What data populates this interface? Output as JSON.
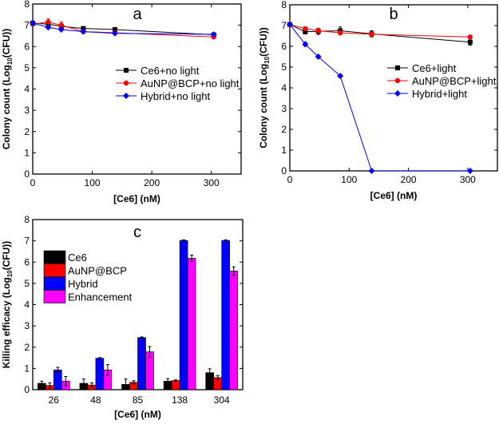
{
  "chart_data": [
    {
      "id": "a",
      "type": "line",
      "panel_label": "a",
      "xlabel": "[Ce6] (nM)",
      "ylabel_pre": "Colony count (Log",
      "ylabel_sub": "10",
      "ylabel_post": "(CFU))",
      "xlim": [
        0,
        350
      ],
      "ylim": [
        0,
        8
      ],
      "xticks": [
        0,
        100,
        200,
        300
      ],
      "yticks": [
        0,
        1,
        2,
        3,
        4,
        5,
        6,
        7,
        8
      ],
      "x": [
        0,
        26,
        48,
        85,
        138,
        304
      ],
      "legend_position": "center-right",
      "series": [
        {
          "name": "Ce6+no light",
          "color": "#000000",
          "marker": "square",
          "values": [
            7.1,
            7.05,
            6.95,
            6.85,
            6.8,
            6.55
          ],
          "errors": [
            0.05,
            0.1,
            0.1,
            0.05,
            0.05,
            0.05
          ]
        },
        {
          "name": "AuNP@BCP+no light",
          "color": "#ff0000",
          "marker": "circle",
          "values": [
            7.05,
            7.15,
            7.0,
            6.7,
            6.65,
            6.45
          ],
          "errors": [
            0.05,
            0.15,
            0.15,
            0.05,
            0.05,
            0.05
          ]
        },
        {
          "name": "Hybrid+no light",
          "color": "#0000ff",
          "marker": "diamond",
          "values": [
            7.1,
            6.9,
            6.8,
            6.7,
            6.62,
            6.57
          ],
          "errors": [
            0.03,
            0.05,
            0.05,
            0.05,
            0.05,
            0.03
          ]
        }
      ]
    },
    {
      "id": "b",
      "type": "line",
      "panel_label": "b",
      "xlabel": "[Ce6] (nM)",
      "ylabel_pre": "Colony count (Log",
      "ylabel_sub": "10",
      "ylabel_post": "(CFU))",
      "xlim": [
        0,
        350
      ],
      "ylim": [
        0,
        8
      ],
      "xticks": [
        0,
        100,
        200,
        300
      ],
      "yticks": [
        0,
        1,
        2,
        3,
        4,
        5,
        6,
        7,
        8
      ],
      "x": [
        0,
        26,
        48,
        85,
        138,
        304
      ],
      "legend_position": "center-right",
      "series": [
        {
          "name": "Ce6+light",
          "color": "#000000",
          "marker": "square",
          "values": [
            7.05,
            6.7,
            6.72,
            6.75,
            6.6,
            6.2
          ],
          "errors": [
            0.05,
            0.1,
            0.15,
            0.18,
            0.15,
            0.15
          ]
        },
        {
          "name": "AuNP@BCP+light",
          "color": "#ff0000",
          "marker": "circle",
          "values": [
            7.05,
            6.85,
            6.75,
            6.65,
            6.58,
            6.45
          ],
          "errors": [
            0.05,
            0.08,
            0.1,
            0.1,
            0.08,
            0.08
          ]
        },
        {
          "name": "Hybrid+light",
          "color": "#0000ff",
          "marker": "diamond",
          "values": [
            7.05,
            6.1,
            5.5,
            4.57,
            0,
            0
          ],
          "errors": [
            0.05,
            0.1,
            0.05,
            0.05,
            0,
            0
          ]
        }
      ]
    },
    {
      "id": "c",
      "type": "bar",
      "panel_label": "c",
      "xlabel": "[Ce6] (nM)",
      "ylabel_pre": "Killing efficacy (Log",
      "ylabel_sub": "10",
      "ylabel_post": "(CFU))",
      "ylim": [
        0,
        8
      ],
      "yticks": [
        0,
        1,
        2,
        3,
        4,
        5,
        6,
        7,
        8
      ],
      "categories": [
        "26",
        "48",
        "85",
        "138",
        "304"
      ],
      "legend_position": "top-left",
      "series": [
        {
          "name": "Ce6",
          "color": "#000000",
          "values": [
            0.3,
            0.3,
            0.25,
            0.4,
            0.8
          ],
          "errors": [
            0.1,
            0.2,
            0.25,
            0.12,
            0.18
          ]
        },
        {
          "name": "AuNP@BCP",
          "color": "#ff0000",
          "values": [
            0.2,
            0.22,
            0.35,
            0.43,
            0.57
          ],
          "errors": [
            0.12,
            0.1,
            0.07,
            0.03,
            0.1
          ]
        },
        {
          "name": "Hybrid",
          "color": "#0000ff",
          "values": [
            0.93,
            1.48,
            2.45,
            7.02,
            7.02
          ],
          "errors": [
            0.12,
            0.03,
            0.03,
            0.03,
            0.03
          ]
        },
        {
          "name": "Enhancement",
          "color": "#ff00ff",
          "values": [
            0.4,
            0.93,
            1.78,
            6.18,
            5.58
          ],
          "errors": [
            0.22,
            0.25,
            0.25,
            0.15,
            0.2
          ]
        }
      ]
    }
  ]
}
